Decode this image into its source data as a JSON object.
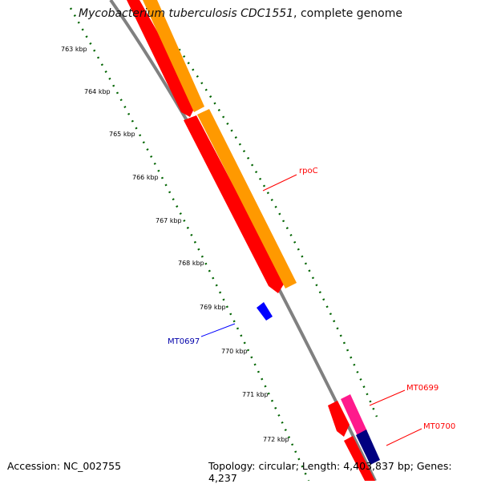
{
  "title": {
    "species": "Mycobacterium tuberculosis CDC1551",
    "suffix": ", complete genome"
  },
  "ticks": [
    {
      "label": "763 kbp"
    },
    {
      "label": "764 kbp"
    },
    {
      "label": "765 kbp"
    },
    {
      "label": "766 kbp"
    },
    {
      "label": "767 kbp"
    },
    {
      "label": "768 kbp"
    },
    {
      "label": "769 kbp"
    },
    {
      "label": "770 kbp"
    },
    {
      "label": "771 kbp"
    },
    {
      "label": "772 kbp"
    }
  ],
  "features": [
    {
      "label": "rpoC",
      "color": "#ff0000"
    },
    {
      "label": "MT0697",
      "color": "#0000ff"
    },
    {
      "label": "MT0699",
      "color": "#ff0000"
    },
    {
      "label": "MT0700",
      "color": "#ff0000"
    }
  ],
  "colors": {
    "backbone": "#808080",
    "tick": "#006400",
    "cds_forward": "#ff0000",
    "gene_track": "#ff9900",
    "cds_small": "#0000ff",
    "cds_pink": "#ff1a8c",
    "cds_navy": "#000080"
  },
  "footer": {
    "accession": "Accession: NC_002755",
    "summary": "Topology: circular; Length: 4,403,837 bp; Genes: 4,237"
  }
}
